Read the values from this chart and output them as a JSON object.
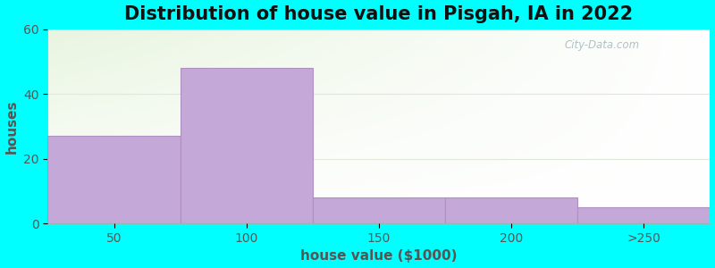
{
  "title": "Distribution of house value in Pisgah, IA in 2022",
  "xlabel": "house value ($1000)",
  "ylabel": "houses",
  "bar_labels": [
    "50",
    "100",
    "150",
    "200",
    ">250"
  ],
  "bar_values": [
    27,
    48,
    8,
    8,
    5
  ],
  "bar_color": "#C4A8D8",
  "bar_edgecolor": "#B090C0",
  "ylim": [
    0,
    60
  ],
  "yticks": [
    0,
    20,
    40,
    60
  ],
  "xlim": [
    0,
    5
  ],
  "background_color": "#00FFFF",
  "plot_bg_top": "#E8F5E0",
  "plot_bg_bottom": "#F8FFF4",
  "plot_bg_right": "#FFFFFF",
  "title_fontsize": 15,
  "axis_label_fontsize": 11,
  "tick_fontsize": 10,
  "watermark_text": "City-Data.com",
  "grid_color": "#E0E8D8",
  "spine_color": "#AAAAAA"
}
